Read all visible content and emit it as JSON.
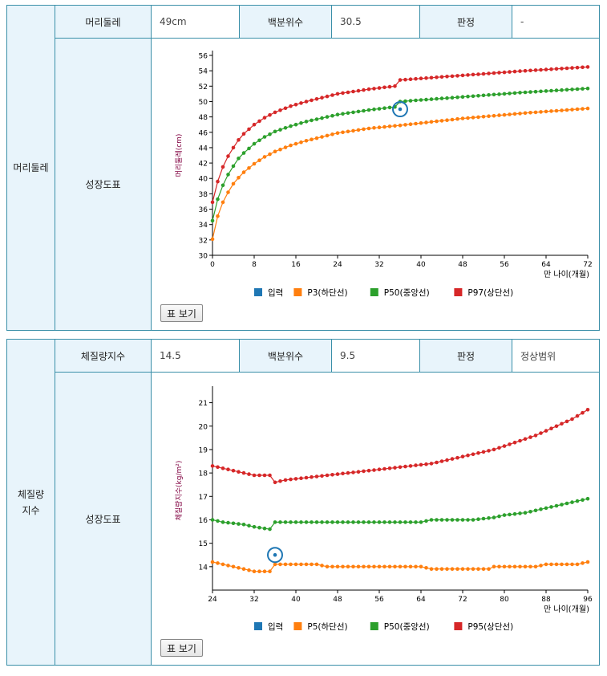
{
  "head_section": {
    "title": "머리둘레",
    "measure_label": "머리둘레",
    "measure_value": "49cm",
    "percentile_label": "백분위수",
    "percentile_value": "30.5",
    "judgement_label": "판정",
    "judgement_value": "-",
    "chart_label": "성장도표",
    "button_label": "표 보기"
  },
  "bmi_section": {
    "title_line1": "체질량",
    "title_line2": "지수",
    "measure_label": "체질량지수",
    "measure_value": "14.5",
    "percentile_label": "백분위수",
    "percentile_value": "9.5",
    "judgement_label": "판정",
    "judgement_value": "정상범위",
    "chart_label": "성장도표",
    "button_label": "표 보기"
  },
  "colors": {
    "input": "#1f77b4",
    "low": "#ff7f0e",
    "mid": "#2ca02c",
    "high": "#d62728",
    "border": "#3a8fa8"
  },
  "chart_data": [
    {
      "type": "line",
      "ylabel": "머리둘레(cm)",
      "xlabel": "만 나이(개월)",
      "xlim": [
        0,
        72
      ],
      "ylim": [
        30,
        56
      ],
      "xticks": [
        0,
        8,
        16,
        24,
        32,
        40,
        48,
        56,
        64,
        72
      ],
      "yticks": [
        30,
        32,
        34,
        36,
        38,
        40,
        42,
        44,
        46,
        48,
        50,
        52,
        54,
        56
      ],
      "legend": [
        "입력",
        "P3(하단선)",
        "P50(중앙선)",
        "P97(상단선)"
      ],
      "input_point": {
        "x": 36,
        "y": 49
      },
      "series": [
        {
          "name": "P3(하단선)",
          "anchors": [
            [
              0,
              32.1
            ],
            [
              1,
              35.1
            ],
            [
              2,
              36.9
            ],
            [
              3,
              38.2
            ],
            [
              4,
              39.3
            ],
            [
              5,
              40.1
            ],
            [
              6,
              40.8
            ],
            [
              8,
              41.9
            ],
            [
              10,
              42.8
            ],
            [
              12,
              43.5
            ],
            [
              15,
              44.3
            ],
            [
              18,
              44.9
            ],
            [
              24,
              45.9
            ],
            [
              30,
              46.5
            ],
            [
              36,
              46.9
            ],
            [
              48,
              47.8
            ],
            [
              60,
              48.5
            ],
            [
              72,
              49.1
            ]
          ]
        },
        {
          "name": "P50(중앙선)",
          "anchors": [
            [
              0,
              34.5
            ],
            [
              1,
              37.3
            ],
            [
              2,
              39.1
            ],
            [
              3,
              40.5
            ],
            [
              4,
              41.6
            ],
            [
              5,
              42.6
            ],
            [
              6,
              43.3
            ],
            [
              8,
              44.5
            ],
            [
              10,
              45.4
            ],
            [
              12,
              46.1
            ],
            [
              15,
              46.8
            ],
            [
              18,
              47.4
            ],
            [
              24,
              48.3
            ],
            [
              30,
              48.9
            ],
            [
              35,
              49.3
            ],
            [
              36,
              50
            ],
            [
              48,
              50.6
            ],
            [
              60,
              51.2
            ],
            [
              72,
              51.7
            ]
          ]
        },
        {
          "name": "P97(상단선)",
          "anchors": [
            [
              0,
              36.9
            ],
            [
              1,
              39.6
            ],
            [
              2,
              41.5
            ],
            [
              3,
              42.9
            ],
            [
              4,
              44.0
            ],
            [
              5,
              45.0
            ],
            [
              6,
              45.8
            ],
            [
              8,
              47.0
            ],
            [
              10,
              47.9
            ],
            [
              12,
              48.6
            ],
            [
              15,
              49.4
            ],
            [
              18,
              50.0
            ],
            [
              24,
              51.0
            ],
            [
              30,
              51.6
            ],
            [
              35,
              52.0
            ],
            [
              36,
              52.8
            ],
            [
              48,
              53.4
            ],
            [
              60,
              54.0
            ],
            [
              72,
              54.5
            ]
          ]
        }
      ]
    },
    {
      "type": "line",
      "ylabel": "체질량지수(kg/m²)",
      "xlabel": "만 나이(개월)",
      "xlim": [
        24,
        96
      ],
      "ylim": [
        13,
        21.5
      ],
      "xticks": [
        24,
        32,
        40,
        48,
        56,
        64,
        72,
        80,
        88,
        96
      ],
      "yticks": [
        14,
        15,
        16,
        17,
        18,
        19,
        20,
        21
      ],
      "legend": [
        "입력",
        "P5(하단선)",
        "P50(중앙선)",
        "P95(상단선)"
      ],
      "input_point": {
        "x": 36,
        "y": 14.5
      },
      "series": [
        {
          "name": "P5(하단선)",
          "anchors": [
            [
              24,
              14.2
            ],
            [
              26,
              14.1
            ],
            [
              28,
              14.0
            ],
            [
              30,
              13.9
            ],
            [
              32,
              13.8
            ],
            [
              35,
              13.8
            ],
            [
              36,
              14.1
            ],
            [
              44,
              14.1
            ],
            [
              46,
              14.0
            ],
            [
              64,
              14.0
            ],
            [
              66,
              13.9
            ],
            [
              77,
              13.9
            ],
            [
              78,
              14.0
            ],
            [
              86,
              14.0
            ],
            [
              88,
              14.1
            ],
            [
              94,
              14.1
            ],
            [
              96,
              14.2
            ]
          ]
        },
        {
          "name": "P50(중앙선)",
          "anchors": [
            [
              24,
              16.0
            ],
            [
              26,
              15.9
            ],
            [
              30,
              15.8
            ],
            [
              32,
              15.7
            ],
            [
              35,
              15.6
            ],
            [
              36,
              15.9
            ],
            [
              64,
              15.9
            ],
            [
              66,
              16.0
            ],
            [
              74,
              16.0
            ],
            [
              78,
              16.1
            ],
            [
              80,
              16.2
            ],
            [
              84,
              16.3
            ],
            [
              88,
              16.5
            ],
            [
              92,
              16.7
            ],
            [
              96,
              16.9
            ]
          ]
        },
        {
          "name": "P95(상단선)",
          "anchors": [
            [
              24,
              18.3
            ],
            [
              26,
              18.2
            ],
            [
              28,
              18.1
            ],
            [
              30,
              18.0
            ],
            [
              32,
              17.9
            ],
            [
              35,
              17.9
            ],
            [
              36,
              17.6
            ],
            [
              38,
              17.7
            ],
            [
              42,
              17.8
            ],
            [
              46,
              17.9
            ],
            [
              50,
              18.0
            ],
            [
              54,
              18.1
            ],
            [
              58,
              18.2
            ],
            [
              62,
              18.3
            ],
            [
              66,
              18.4
            ],
            [
              70,
              18.6
            ],
            [
              74,
              18.8
            ],
            [
              78,
              19.0
            ],
            [
              82,
              19.3
            ],
            [
              86,
              19.6
            ],
            [
              90,
              20.0
            ],
            [
              93,
              20.3
            ],
            [
              96,
              20.7
            ]
          ]
        }
      ]
    }
  ]
}
